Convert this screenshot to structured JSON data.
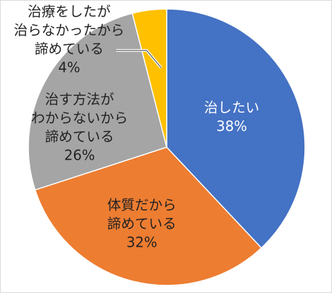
{
  "chart_data": {
    "type": "pie",
    "categories": [
      [
        "治したい"
      ],
      [
        "体質だから",
        "諦めている"
      ],
      [
        "治す方法が",
        "わからないから",
        "諦めている"
      ],
      [
        "治療をしたが",
        "治らなかったから",
        "諦めている"
      ]
    ],
    "values": [
      38,
      32,
      26,
      4
    ],
    "value_labels": [
      "38%",
      "32%",
      "26%",
      "4%"
    ],
    "colors": [
      "#4472c4",
      "#ed7d31",
      "#a5a5a5",
      "#ffc000"
    ]
  }
}
